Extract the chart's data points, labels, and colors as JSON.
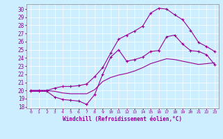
{
  "xlabel": "Windchill (Refroidissement éolien,°C)",
  "bg_color": "#cceeff",
  "line_color": "#990099",
  "x_ticks": [
    0,
    1,
    2,
    3,
    4,
    5,
    6,
    7,
    8,
    9,
    10,
    11,
    12,
    13,
    14,
    15,
    16,
    17,
    18,
    19,
    20,
    21,
    22,
    23
  ],
  "ylim": [
    17.8,
    30.6
  ],
  "xlim": [
    -0.5,
    23.5
  ],
  "yticks": [
    18,
    19,
    20,
    21,
    22,
    23,
    24,
    25,
    26,
    27,
    28,
    29,
    30
  ],
  "curve_top": {
    "x": [
      0,
      1,
      2,
      3,
      4,
      5,
      6,
      7,
      8,
      9,
      10,
      11,
      12,
      13,
      14,
      15,
      16,
      17,
      18,
      19,
      20,
      21,
      22,
      23
    ],
    "y": [
      20.0,
      20.0,
      20.0,
      20.3,
      20.5,
      20.5,
      20.6,
      20.8,
      21.7,
      22.8,
      24.6,
      26.3,
      26.8,
      27.3,
      27.9,
      29.5,
      30.1,
      30.0,
      29.3,
      28.7,
      27.4,
      25.9,
      25.4,
      24.8
    ]
  },
  "curve_mid": {
    "x": [
      0,
      1,
      2,
      3,
      4,
      5,
      6,
      7,
      8,
      9,
      10,
      11,
      12,
      13,
      14,
      15,
      16,
      17,
      18,
      19,
      20,
      21,
      22,
      23
    ],
    "y": [
      19.9,
      19.9,
      19.9,
      19.2,
      18.9,
      18.8,
      18.7,
      18.3,
      19.5,
      22.0,
      24.1,
      25.0,
      23.6,
      23.8,
      24.1,
      24.8,
      24.9,
      26.6,
      26.8,
      25.7,
      24.9,
      24.8,
      24.4,
      23.2
    ]
  },
  "curve_bot": {
    "x": [
      0,
      1,
      2,
      3,
      4,
      5,
      6,
      7,
      8,
      9,
      10,
      11,
      12,
      13,
      14,
      15,
      16,
      17,
      18,
      19,
      20,
      21,
      22,
      23
    ],
    "y": [
      20.0,
      20.0,
      20.0,
      19.9,
      19.7,
      19.6,
      19.6,
      19.6,
      20.1,
      21.1,
      21.6,
      21.9,
      22.1,
      22.4,
      22.8,
      23.3,
      23.6,
      23.9,
      23.8,
      23.6,
      23.4,
      23.2,
      23.3,
      23.4
    ]
  }
}
